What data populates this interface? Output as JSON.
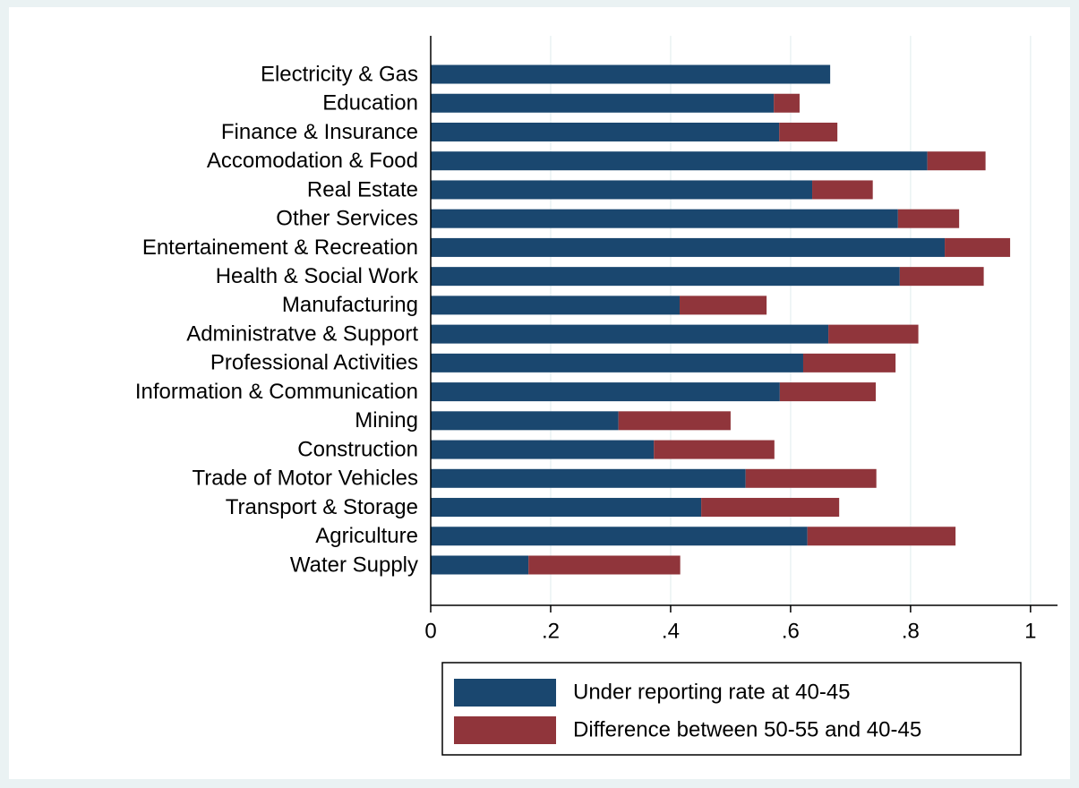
{
  "chart_data": {
    "type": "bar",
    "orientation": "horizontal",
    "stacked": true,
    "categories": [
      "Electricity & Gas",
      "Education",
      "Finance & Insurance",
      "Accomodation & Food",
      "Real Estate",
      "Other Services",
      "Entertainement & Recreation",
      "Health & Social Work",
      "Manufacturing",
      "Administratve & Support",
      "Professional Activities",
      "Information & Communication",
      "Mining",
      "Construction",
      "Trade of Motor Vehicles",
      "Transport & Storage",
      "Agriculture",
      "Water Supply"
    ],
    "series": [
      {
        "name": "Under reporting rate at 40-45",
        "color": "#1a476f",
        "values": [
          0.666,
          0.572,
          0.581,
          0.828,
          0.636,
          0.779,
          0.857,
          0.782,
          0.415,
          0.663,
          0.621,
          0.582,
          0.313,
          0.372,
          0.525,
          0.451,
          0.628,
          0.163
        ]
      },
      {
        "name": "Difference between 50-55 and 40-45",
        "color": "#90353b",
        "values": [
          0,
          0.043,
          0.097,
          0.097,
          0.101,
          0.102,
          0.109,
          0.14,
          0.145,
          0.15,
          0.154,
          0.16,
          0.187,
          0.201,
          0.218,
          0.23,
          0.247,
          0.253
        ]
      }
    ],
    "xlim": [
      0,
      1.045
    ],
    "xticks": [
      0,
      {
        "value": 0.2,
        "label": ".2"
      },
      {
        "value": 0.4,
        "label": ".4"
      },
      {
        "value": 0.6,
        "label": ".6"
      },
      {
        "value": 0.8,
        "label": ".8"
      },
      1
    ],
    "grid": true,
    "legend": "bottom"
  }
}
